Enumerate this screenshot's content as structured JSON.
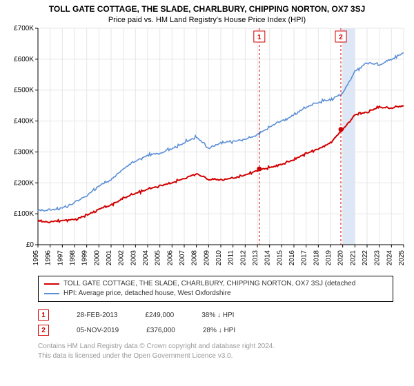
{
  "title": "TOLL GATE COTTAGE, THE SLADE, CHARLBURY, CHIPPING NORTON, OX7 3SJ",
  "subtitle": "Price paid vs. HM Land Registry's House Price Index (HPI)",
  "chart": {
    "type": "line",
    "background_color": "#ffffff",
    "grid_color": "#e6e6e6",
    "axis_color": "#000000",
    "tick_color": "#000000",
    "tick_fontsize": 10,
    "x": {
      "years": [
        1995,
        1996,
        1997,
        1998,
        1999,
        2000,
        2001,
        2002,
        2003,
        2004,
        2005,
        2006,
        2007,
        2008,
        2009,
        2010,
        2011,
        2012,
        2013,
        2014,
        2015,
        2016,
        2017,
        2018,
        2019,
        2020,
        2021,
        2022,
        2023,
        2024,
        2025
      ],
      "label_rotation": -90
    },
    "y": {
      "min": 0,
      "max": 700000,
      "step": 100000,
      "labels": [
        "£0",
        "£100K",
        "£200K",
        "£300K",
        "£400K",
        "£500K",
        "£600K",
        "£700K"
      ]
    },
    "series": [
      {
        "name": "property",
        "color": "#d10000",
        "width": 2,
        "values": [
          75,
          75,
          78,
          82,
          95,
          115,
          128,
          150,
          165,
          180,
          190,
          200,
          215,
          230,
          210,
          210,
          215,
          225,
          240,
          250,
          260,
          275,
          295,
          310,
          330,
          373,
          420,
          430,
          445,
          440,
          450
        ]
      },
      {
        "name": "hpi",
        "color": "#5b8fd6",
        "width": 1.6,
        "values": [
          110,
          112,
          120,
          135,
          160,
          190,
          210,
          245,
          270,
          290,
          295,
          310,
          330,
          350,
          310,
          330,
          335,
          340,
          355,
          380,
          400,
          420,
          445,
          460,
          470,
          490,
          560,
          590,
          580,
          600,
          620
        ]
      }
    ],
    "shaded_region": {
      "x_start": 2020,
      "x_end": 2021,
      "color": "#dde7f5",
      "opacity": 1
    },
    "markers": [
      {
        "id": "1",
        "x": 2013.16,
        "y_on_red": 245,
        "label_y": 690,
        "box_border": "#d10000",
        "box_fill": "#ffffff",
        "box_text": "#d10000",
        "dash_color": "#d10000"
      },
      {
        "id": "2",
        "x": 2019.85,
        "y_on_red": 373,
        "label_y": 690,
        "box_border": "#d10000",
        "box_fill": "#ffffff",
        "box_text": "#d10000",
        "dash_color": "#d10000"
      }
    ],
    "marker_dot": {
      "radius": 3.5,
      "fill": "#d10000"
    }
  },
  "legend": {
    "series1": {
      "label": "TOLL GATE COTTAGE, THE SLADE, CHARLBURY, CHIPPING NORTON, OX7 3SJ (detached",
      "color": "#d10000"
    },
    "series2": {
      "label": "HPI: Average price, detached house, West Oxfordshire",
      "color": "#5b8fd6"
    }
  },
  "marker_rows": [
    {
      "id": "1",
      "date": "28-FEB-2013",
      "price": "£249,000",
      "diff": "38% ↓ HPI",
      "border": "#d10000",
      "text": "#d10000"
    },
    {
      "id": "2",
      "date": "05-NOV-2019",
      "price": "£376,000",
      "diff": "28% ↓ HPI",
      "border": "#d10000",
      "text": "#d10000"
    }
  ],
  "footer": {
    "line1": "Contains HM Land Registry data © Crown copyright and database right 2024.",
    "line2": "This data is licensed under the Open Government Licence v3.0."
  }
}
